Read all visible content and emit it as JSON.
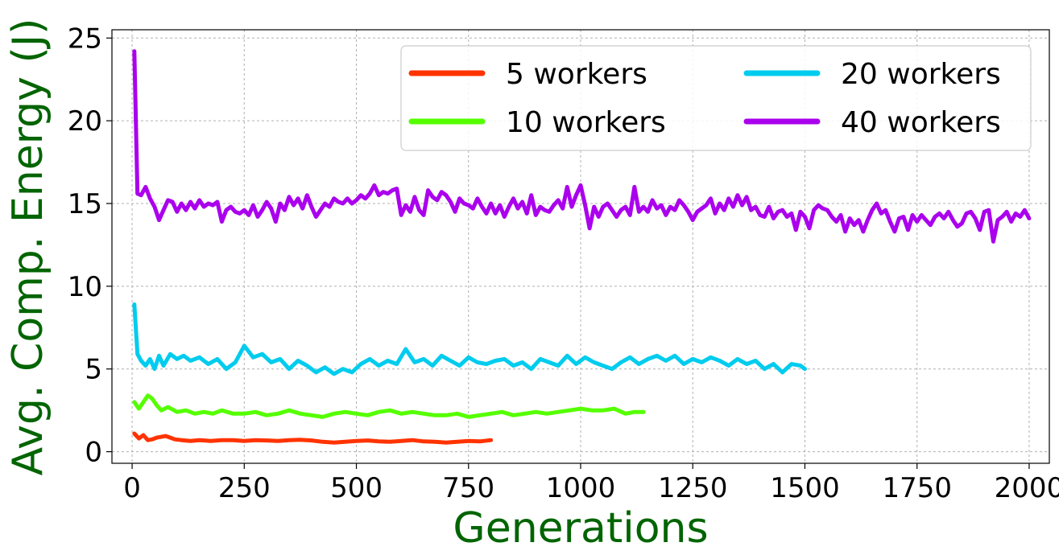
{
  "chart_data": {
    "type": "line",
    "title": "",
    "xlabel": "Generations",
    "ylabel": "Avg. Comp. Energy (J)",
    "label_color": "#006400",
    "xlim": [
      -45,
      2045
    ],
    "ylim": [
      -0.7,
      25.5
    ],
    "xticks": [
      0,
      250,
      500,
      750,
      1000,
      1250,
      1500,
      1750,
      2000
    ],
    "yticks": [
      0,
      5,
      10,
      15,
      20,
      25
    ],
    "grid": true,
    "legend_position": "top-right",
    "legend_columns": 2,
    "series": [
      {
        "name": "5 workers",
        "color": "#ff3300",
        "x": [
          5,
          15,
          25,
          35,
          45,
          55,
          65,
          75,
          85,
          95,
          110,
          130,
          150,
          175,
          200,
          225,
          250,
          275,
          300,
          325,
          350,
          375,
          400,
          425,
          450,
          475,
          500,
          525,
          550,
          575,
          600,
          625,
          650,
          675,
          700,
          725,
          750,
          775,
          800
        ],
        "values": [
          1.1,
          0.8,
          1.0,
          0.7,
          0.75,
          0.85,
          0.9,
          0.95,
          0.85,
          0.75,
          0.7,
          0.65,
          0.7,
          0.65,
          0.7,
          0.7,
          0.65,
          0.7,
          0.68,
          0.65,
          0.7,
          0.72,
          0.68,
          0.6,
          0.55,
          0.6,
          0.65,
          0.68,
          0.62,
          0.6,
          0.65,
          0.7,
          0.62,
          0.6,
          0.55,
          0.6,
          0.65,
          0.62,
          0.7
        ]
      },
      {
        "name": "10 workers",
        "color": "#55ff00",
        "x": [
          5,
          15,
          25,
          35,
          45,
          55,
          65,
          80,
          100,
          120,
          140,
          160,
          180,
          200,
          225,
          250,
          275,
          300,
          325,
          350,
          375,
          400,
          425,
          450,
          475,
          500,
          525,
          550,
          575,
          600,
          625,
          650,
          675,
          700,
          725,
          750,
          775,
          800,
          825,
          850,
          875,
          900,
          925,
          950,
          975,
          1000,
          1025,
          1050,
          1075,
          1100,
          1120,
          1140
        ],
        "values": [
          3.0,
          2.6,
          3.0,
          3.4,
          3.2,
          2.8,
          2.5,
          2.7,
          2.4,
          2.5,
          2.3,
          2.4,
          2.3,
          2.5,
          2.3,
          2.3,
          2.4,
          2.2,
          2.3,
          2.5,
          2.3,
          2.2,
          2.1,
          2.3,
          2.4,
          2.3,
          2.2,
          2.4,
          2.5,
          2.3,
          2.4,
          2.3,
          2.2,
          2.2,
          2.3,
          2.1,
          2.2,
          2.3,
          2.4,
          2.2,
          2.3,
          2.4,
          2.3,
          2.4,
          2.5,
          2.6,
          2.5,
          2.5,
          2.6,
          2.3,
          2.4,
          2.4
        ]
      },
      {
        "name": "20 workers",
        "color": "#00ccee",
        "x": [
          5,
          12,
          20,
          30,
          40,
          50,
          60,
          70,
          85,
          100,
          115,
          130,
          150,
          170,
          190,
          210,
          230,
          250,
          270,
          290,
          310,
          330,
          350,
          370,
          390,
          410,
          430,
          450,
          470,
          490,
          510,
          530,
          550,
          570,
          590,
          610,
          630,
          650,
          670,
          690,
          710,
          730,
          750,
          770,
          790,
          810,
          830,
          850,
          870,
          890,
          910,
          930,
          950,
          970,
          990,
          1010,
          1030,
          1050,
          1070,
          1090,
          1110,
          1130,
          1150,
          1170,
          1190,
          1210,
          1230,
          1250,
          1270,
          1290,
          1310,
          1330,
          1350,
          1370,
          1390,
          1410,
          1430,
          1450,
          1470,
          1490,
          1500
        ],
        "values": [
          8.9,
          5.9,
          5.5,
          5.2,
          5.6,
          5.0,
          5.8,
          5.2,
          5.9,
          5.6,
          5.8,
          5.5,
          5.7,
          5.3,
          5.6,
          5.0,
          5.4,
          6.4,
          5.7,
          5.9,
          5.4,
          5.6,
          5.0,
          5.5,
          5.2,
          4.8,
          5.1,
          4.7,
          5.0,
          4.8,
          5.3,
          5.6,
          5.2,
          5.5,
          5.3,
          6.2,
          5.4,
          5.6,
          5.2,
          5.8,
          5.5,
          5.2,
          5.7,
          5.4,
          5.3,
          5.5,
          5.6,
          5.2,
          5.4,
          5.0,
          5.6,
          5.4,
          5.2,
          5.8,
          5.3,
          5.7,
          5.4,
          5.2,
          5.0,
          5.4,
          5.7,
          5.3,
          5.6,
          5.8,
          5.5,
          5.8,
          5.3,
          5.6,
          5.4,
          5.7,
          5.5,
          5.2,
          5.6,
          5.3,
          5.5,
          5.0,
          5.3,
          4.8,
          5.3,
          5.2,
          5.0
        ]
      },
      {
        "name": "40 workers",
        "color": "#aa00ee",
        "x": [
          5,
          12,
          20,
          30,
          40,
          50,
          60,
          70,
          80,
          90,
          100,
          110,
          120,
          130,
          140,
          150,
          160,
          170,
          180,
          190,
          200,
          210,
          220,
          230,
          240,
          250,
          260,
          270,
          280,
          290,
          300,
          310,
          320,
          330,
          340,
          350,
          360,
          370,
          380,
          390,
          400,
          410,
          420,
          430,
          440,
          450,
          460,
          470,
          480,
          490,
          500,
          510,
          520,
          530,
          540,
          550,
          560,
          570,
          580,
          590,
          600,
          610,
          620,
          630,
          640,
          650,
          660,
          670,
          680,
          690,
          700,
          710,
          720,
          730,
          740,
          750,
          760,
          770,
          780,
          790,
          800,
          810,
          820,
          830,
          840,
          850,
          860,
          870,
          880,
          890,
          900,
          910,
          920,
          930,
          940,
          950,
          960,
          970,
          980,
          990,
          1000,
          1010,
          1020,
          1030,
          1040,
          1050,
          1060,
          1070,
          1080,
          1090,
          1100,
          1110,
          1120,
          1130,
          1140,
          1150,
          1160,
          1170,
          1180,
          1190,
          1200,
          1210,
          1220,
          1230,
          1240,
          1250,
          1260,
          1270,
          1280,
          1290,
          1300,
          1310,
          1320,
          1330,
          1340,
          1350,
          1360,
          1370,
          1380,
          1390,
          1400,
          1410,
          1420,
          1430,
          1440,
          1450,
          1460,
          1470,
          1480,
          1490,
          1500,
          1510,
          1520,
          1530,
          1540,
          1550,
          1560,
          1570,
          1580,
          1590,
          1600,
          1610,
          1620,
          1630,
          1640,
          1650,
          1660,
          1670,
          1680,
          1690,
          1700,
          1710,
          1720,
          1730,
          1740,
          1750,
          1760,
          1770,
          1780,
          1790,
          1800,
          1810,
          1820,
          1830,
          1840,
          1850,
          1860,
          1870,
          1880,
          1890,
          1900,
          1910,
          1920,
          1930,
          1940,
          1950,
          1960,
          1970,
          1980,
          1990,
          2000
        ],
        "values": [
          24.2,
          15.6,
          15.5,
          16.0,
          15.3,
          14.8,
          14.0,
          14.6,
          15.2,
          15.1,
          14.5,
          15.0,
          14.6,
          15.1,
          14.7,
          15.2,
          14.8,
          15.0,
          14.9,
          15.1,
          13.9,
          14.6,
          14.8,
          14.5,
          14.4,
          14.6,
          14.3,
          14.9,
          14.2,
          14.6,
          15.1,
          14.7,
          13.9,
          15.0,
          14.6,
          15.4,
          14.9,
          15.3,
          14.7,
          15.5,
          14.8,
          14.2,
          14.6,
          15.0,
          14.8,
          15.3,
          15.1,
          15.0,
          15.3,
          15.0,
          15.2,
          15.5,
          15.3,
          15.6,
          16.1,
          15.5,
          15.7,
          15.6,
          15.8,
          15.9,
          14.3,
          14.9,
          14.5,
          15.4,
          14.6,
          14.3,
          15.8,
          15.4,
          15.2,
          15.7,
          15.5,
          15.1,
          14.5,
          15.3,
          15.0,
          14.9,
          14.7,
          15.3,
          14.8,
          14.4,
          15.0,
          14.4,
          14.9,
          14.2,
          14.8,
          15.3,
          14.7,
          15.1,
          14.4,
          15.5,
          14.3,
          14.8,
          14.6,
          14.5,
          14.9,
          15.2,
          14.7,
          16.0,
          14.8,
          15.5,
          16.1,
          14.9,
          13.5,
          14.8,
          14.2,
          14.8,
          15.0,
          14.6,
          14.2,
          14.6,
          14.8,
          14.3,
          16.0,
          14.5,
          14.8,
          14.5,
          15.2,
          14.7,
          14.9,
          14.3,
          14.8,
          14.6,
          15.2,
          14.9,
          14.5,
          14.0,
          14.5,
          14.7,
          14.9,
          15.3,
          14.4,
          15.0,
          14.6,
          15.3,
          14.8,
          15.5,
          14.9,
          15.4,
          14.6,
          14.8,
          14.3,
          14.2,
          14.8,
          14.1,
          14.5,
          14.6,
          14.2,
          14.4,
          13.4,
          14.5,
          14.2,
          13.5,
          14.6,
          14.9,
          14.7,
          14.6,
          14.2,
          13.9,
          14.3,
          13.3,
          14.1,
          13.7,
          14.0,
          13.3,
          14.0,
          14.6,
          15.0,
          14.4,
          14.6,
          13.9,
          13.3,
          14.1,
          14.2,
          13.4,
          14.3,
          13.9,
          14.3,
          14.0,
          13.7,
          14.2,
          14.4,
          14.1,
          14.5,
          14.0,
          13.6,
          13.8,
          14.4,
          14.5,
          14.1,
          13.4,
          14.5,
          14.6,
          12.7,
          14.0,
          14.2,
          14.5,
          13.9,
          14.4,
          14.2,
          14.6,
          14.1
        ]
      }
    ]
  }
}
